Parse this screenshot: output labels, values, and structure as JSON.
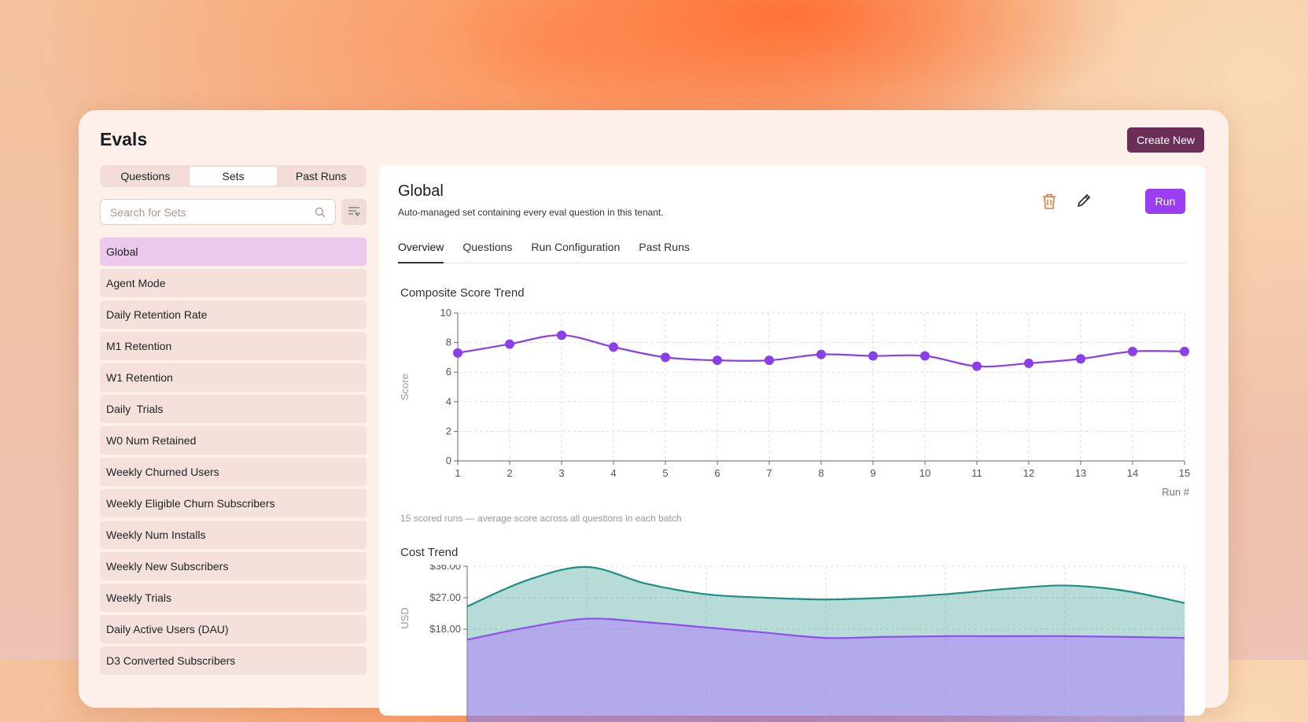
{
  "app": {
    "title": "Evals",
    "create_label": "Create New"
  },
  "sidebar": {
    "segments": [
      "Questions",
      "Sets",
      "Past Runs"
    ],
    "active_segment": "Sets",
    "search_placeholder": "Search for Sets",
    "sets": [
      "Global",
      "Agent Mode",
      "Daily Retention Rate",
      "M1 Retention",
      "W1 Retention",
      "Daily  Trials",
      "W0 Num Retained",
      "Weekly Churned Users",
      "Weekly Eligible Churn Subscribers",
      "Weekly Num Installs",
      "Weekly New Subscribers",
      "Weekly Trials",
      "Daily Active Users (DAU)",
      "D3 Converted Subscribers"
    ],
    "selected_set": "Global"
  },
  "detail": {
    "title": "Global",
    "description": "Auto-managed set containing every eval question in this tenant.",
    "run_label": "Run",
    "tabs": [
      "Overview",
      "Questions",
      "Run Configuration",
      "Past Runs"
    ],
    "active_tab": "Overview"
  },
  "colors": {
    "accent": "#9b3ef2",
    "primary_button": "#6b2f57",
    "score_line": "#8a3fe8",
    "cost_teal": "#1f8f83",
    "cost_purple": "#8f4ff0",
    "delete_icon": "#e8783a"
  },
  "icons": {
    "search": "search-icon",
    "filter": "filter-icon",
    "delete": "trash-icon",
    "edit": "pencil-icon"
  },
  "chart_data": [
    {
      "type": "line",
      "title": "Composite Score Trend",
      "xlabel": "Run #",
      "ylabel": "Score",
      "x": [
        1,
        2,
        3,
        4,
        5,
        6,
        7,
        8,
        9,
        10,
        11,
        12,
        13,
        14,
        15
      ],
      "y": [
        7.3,
        7.9,
        8.5,
        7.7,
        7.0,
        6.8,
        6.8,
        7.2,
        7.1,
        7.1,
        6.4,
        6.6,
        6.9,
        7.4,
        7.4
      ],
      "ylim": [
        0,
        10
      ],
      "yticks": [
        0,
        2,
        4,
        6,
        8,
        10
      ],
      "grid": true,
      "caption": "15 scored runs — average score across all questions in each batch"
    },
    {
      "type": "area",
      "title": "Cost Trend",
      "ylabel": "USD",
      "yticks_labels": [
        "$36.00",
        "$27.00",
        "$18.00"
      ],
      "yticks": [
        36,
        27,
        18
      ],
      "series": [
        {
          "values": [
            24.5,
            32.0,
            35.8,
            31.0,
            28.0,
            27.0,
            26.5,
            27.0,
            28.0,
            29.5,
            30.5,
            29.0,
            25.5
          ]
        },
        {
          "values": [
            15.0,
            18.5,
            21.0,
            20.0,
            18.5,
            17.0,
            15.5,
            15.8,
            16.0,
            16.0,
            16.0,
            15.8,
            15.5
          ]
        }
      ],
      "grid": true
    }
  ]
}
